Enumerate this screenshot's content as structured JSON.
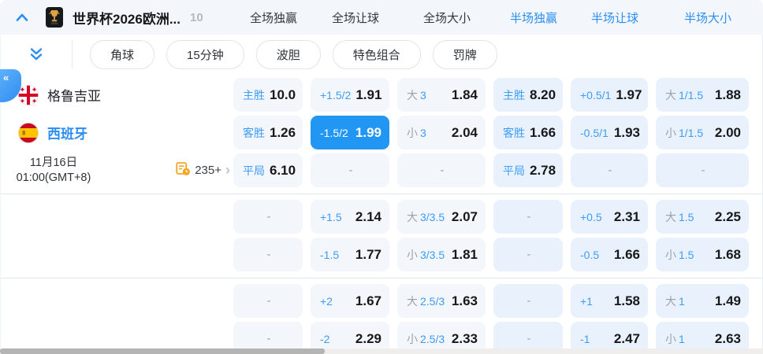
{
  "colors": {
    "accent": "#2b8df0",
    "selected_cell_bg": "#2196f3",
    "label_blue": "#3d9cf5",
    "value_dark": "#17181a",
    "muted_gray": "#9aa3ad",
    "topbar_bg": "#f3f7fc",
    "full_cell_bg": "#f3f6fa",
    "half_cell_bg": "#e9f2fc"
  },
  "header": {
    "title": "世界杯2026欧洲...",
    "count": "10",
    "tabs": [
      {
        "name": "full-time-1x2",
        "label": "全场独赢",
        "blue": false
      },
      {
        "name": "full-time-handicap",
        "label": "全场让球",
        "blue": false
      },
      {
        "name": "full-time-over-under",
        "label": "全场大小",
        "blue": false
      },
      {
        "name": "half-time-1x2",
        "label": "半场独赢",
        "blue": true
      },
      {
        "name": "half-time-handicap",
        "label": "半场让球",
        "blue": true
      },
      {
        "name": "half-time-over-under",
        "label": "半场大小",
        "blue": true
      }
    ]
  },
  "toolbar": {
    "pills": [
      {
        "name": "corners",
        "label": "角球"
      },
      {
        "name": "15-minutes",
        "label": "15分钟"
      },
      {
        "name": "correct-score",
        "label": "波胆"
      },
      {
        "name": "special-combos",
        "label": "特色组合"
      },
      {
        "name": "cards",
        "label": "罚牌"
      }
    ]
  },
  "match": {
    "home": "格鲁吉亚",
    "away": "西班牙",
    "date": "11月16日",
    "time": "01:00(GMT+8)",
    "more_markets": "235+"
  },
  "odds": {
    "group1": [
      [
        {
          "label": "主胜",
          "value": "10.0"
        },
        {
          "label": "+1.5/2",
          "value": "1.91"
        },
        {
          "gray": "大",
          "label": "3",
          "value": "1.84"
        },
        {
          "label": "主胜",
          "value": "8.20"
        },
        {
          "label": "+0.5/1",
          "value": "1.97"
        },
        {
          "gray": "大",
          "label": "1/1.5",
          "value": "1.88"
        }
      ],
      [
        {
          "label": "客胜",
          "value": "1.26"
        },
        {
          "label": "-1.5/2",
          "value": "1.99",
          "selected": true
        },
        {
          "gray": "小",
          "label": "3",
          "value": "2.04"
        },
        {
          "label": "客胜",
          "value": "1.66"
        },
        {
          "label": "-0.5/1",
          "value": "1.93"
        },
        {
          "gray": "小",
          "label": "1/1.5",
          "value": "2.00"
        }
      ],
      [
        {
          "label": "平局",
          "value": "6.10"
        },
        {
          "dash": true
        },
        {
          "dash": true
        },
        {
          "label": "平局",
          "value": "2.78"
        },
        {
          "dash": true
        },
        {
          "dash": true
        }
      ]
    ],
    "group2": [
      [
        {
          "dash": true
        },
        {
          "label": "+1.5",
          "value": "2.14"
        },
        {
          "gray": "大",
          "label": "3/3.5",
          "value": "2.07"
        },
        {
          "dash": true
        },
        {
          "label": "+0.5",
          "value": "2.31"
        },
        {
          "gray": "大",
          "label": "1.5",
          "value": "2.25"
        }
      ],
      [
        {
          "dash": true
        },
        {
          "label": "-1.5",
          "value": "1.77"
        },
        {
          "gray": "小",
          "label": "3/3.5",
          "value": "1.81"
        },
        {
          "dash": true
        },
        {
          "label": "-0.5",
          "value": "1.66"
        },
        {
          "gray": "小",
          "label": "1.5",
          "value": "1.68"
        }
      ]
    ],
    "group3": [
      [
        {
          "dash": true
        },
        {
          "label": "+2",
          "value": "1.67"
        },
        {
          "gray": "大",
          "label": "2.5/3",
          "value": "1.63"
        },
        {
          "dash": true
        },
        {
          "label": "+1",
          "value": "1.58"
        },
        {
          "gray": "大",
          "label": "1",
          "value": "1.49"
        }
      ],
      [
        {
          "dash": true
        },
        {
          "label": "-2",
          "value": "2.29"
        },
        {
          "gray": "小",
          "label": "2.5/3",
          "value": "2.33"
        },
        {
          "dash": true
        },
        {
          "label": "-1",
          "value": "2.47"
        },
        {
          "gray": "小",
          "label": "1",
          "value": "2.63"
        }
      ]
    ]
  }
}
